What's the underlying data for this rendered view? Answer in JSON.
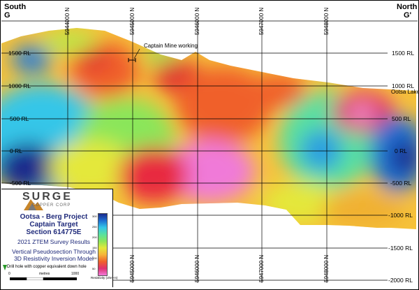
{
  "corners": {
    "left_dir": "South",
    "left_id": "G",
    "right_dir": "North",
    "right_id": "G'"
  },
  "northings": [
    "5944000 N",
    "5945000 N",
    "5946000 N",
    "5947000 N",
    "5948000 N"
  ],
  "left_rl": [
    "1500 RL",
    "1000 RL",
    "500 RL",
    "0 RL",
    "-500 RL"
  ],
  "right_rl": [
    "1500 RL",
    "1000 RL",
    "500 RL",
    "0 RL",
    "-500 RL",
    "-1000 RL",
    "-1500 RL",
    "-2000 RL"
  ],
  "annotations": {
    "mine": "Captain Mine working",
    "lake": "Ootsa Lake"
  },
  "legend": {
    "company": "SURGE",
    "company_sub": "COPPER CORP",
    "title1": "Ootsa - Berg Project",
    "title2": "Captain Target",
    "title3": "Section 614775E",
    "survey": "2021 ZTEM Survey Results",
    "desc1": "Vertical Pseudosection Through",
    "desc2": "3D Resistivity Inversion Model",
    "drill": "Drill hole with copper equivalent down hole",
    "scale_0": "0",
    "scale_unit": "metres",
    "scale_1000": "1000",
    "colorbar_label": "Resistivity (ohm-m)",
    "colorbar_ticks": [
      "300",
      "250",
      "200",
      "150",
      "100",
      "50"
    ]
  },
  "colors": {
    "high_resistivity": "#1a2a8c",
    "low_resistivity": "#f07ad8"
  }
}
